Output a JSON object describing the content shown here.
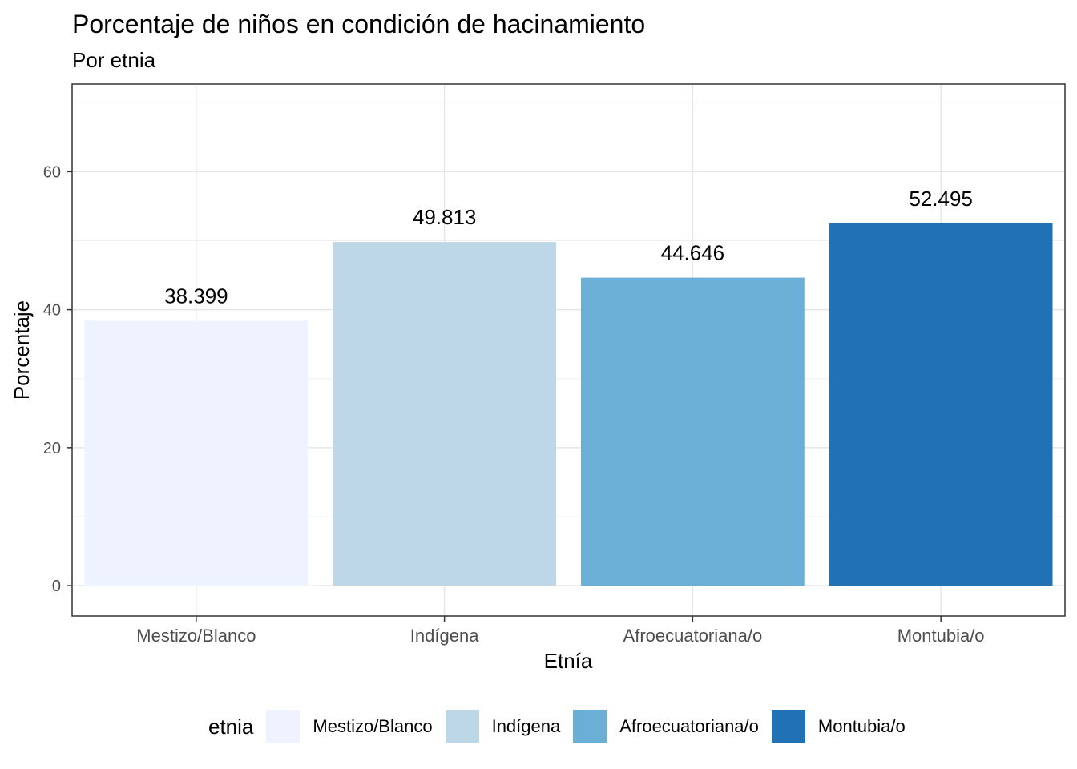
{
  "chart_data": {
    "type": "bar",
    "title": "Porcentaje de niños en condición de hacinamiento",
    "subtitle": "Por etnia",
    "xlabel": "Etnía",
    "ylabel": "Porcentaje",
    "categories": [
      "Mestizo/Blanco",
      "Indígena",
      "Afroecuatoriana/o",
      "Montubia/o"
    ],
    "values": [
      38.399,
      49.813,
      44.646,
      52.495
    ],
    "data_labels": [
      "38.399",
      "49.813",
      "44.646",
      "52.495"
    ],
    "colors": [
      "#eff3ff",
      "#bdd7e7",
      "#6baed6",
      "#2171b5"
    ],
    "ylim": [
      -4.4,
      72.7
    ],
    "yticks": [
      0,
      20,
      40,
      60
    ],
    "grid": true,
    "legend": {
      "title": "etnia",
      "position": "bottom",
      "entries": [
        "Mestizo/Blanco",
        "Indígena",
        "Afroecuatoriana/o",
        "Montubia/o"
      ]
    }
  }
}
